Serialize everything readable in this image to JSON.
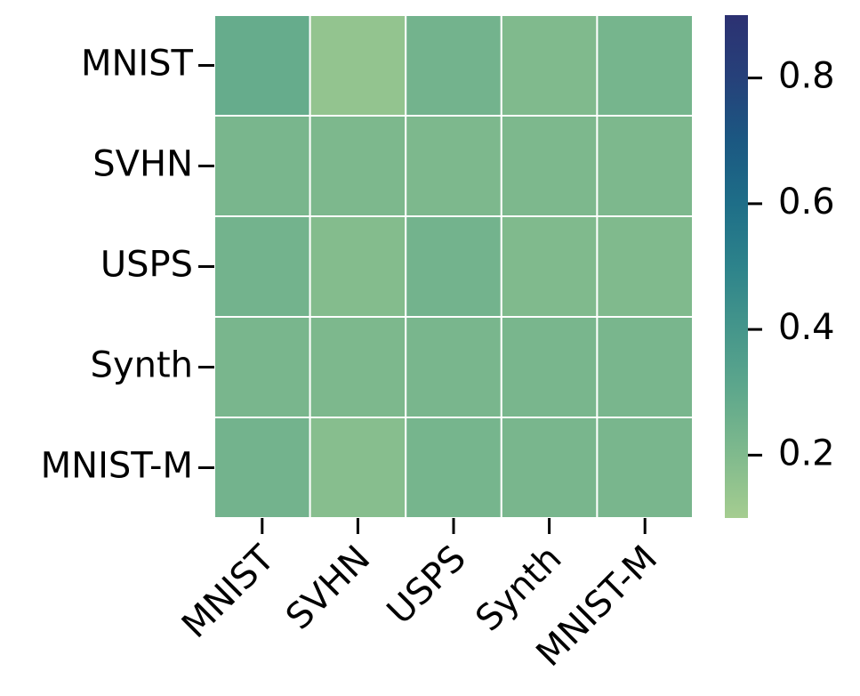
{
  "chart_data": {
    "type": "heatmap",
    "x_categories": [
      "MNIST",
      "SVHN",
      "USPS",
      "Synth",
      "MNIST-M"
    ],
    "y_categories": [
      "MNIST",
      "SVHN",
      "USPS",
      "Synth",
      "MNIST-M"
    ],
    "values": [
      [
        0.28,
        0.15,
        0.24,
        0.2,
        0.23
      ],
      [
        0.22,
        0.21,
        0.21,
        0.21,
        0.21
      ],
      [
        0.24,
        0.19,
        0.24,
        0.2,
        0.2
      ],
      [
        0.22,
        0.21,
        0.22,
        0.22,
        0.22
      ],
      [
        0.24,
        0.18,
        0.23,
        0.22,
        0.22
      ]
    ],
    "colormap": "crest",
    "clim": [
      0.1,
      0.9
    ],
    "cticks": [
      0.2,
      0.4,
      0.6,
      0.8
    ]
  }
}
